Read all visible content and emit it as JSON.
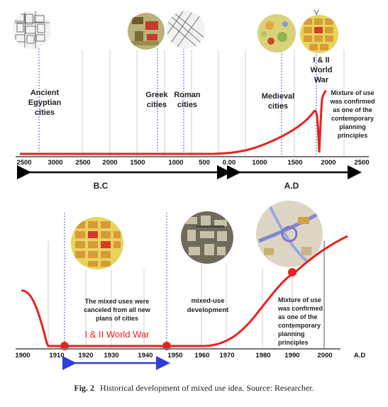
{
  "top_panel": {
    "axis_ticks": [
      "2500",
      "3000",
      "2500",
      "2000",
      "1500",
      "1000",
      "500",
      "0.00",
      "1000",
      "1500",
      "2000",
      "2500"
    ],
    "era_bc": "B.C",
    "era_ad": "A.D",
    "labels": {
      "egyptian": [
        "Ancient",
        "Egyptian",
        "cities"
      ],
      "greek": [
        "Greek",
        "cities"
      ],
      "roman": [
        "Roman",
        "cities"
      ],
      "medieval": [
        "Medieval",
        "cities"
      ],
      "world_war": [
        "I & II",
        "World",
        "War"
      ],
      "mixture": [
        "Mixture of use",
        "was confirmed",
        "as one of the",
        "contemporary",
        "planning",
        "principles"
      ]
    }
  },
  "bottom_panel": {
    "axis_ticks": [
      "1900",
      "1910",
      "1920",
      "1930",
      "1940",
      "1950",
      "1960",
      "1970",
      "1980",
      "1990",
      "2000"
    ],
    "axis_unit": "A.D",
    "world_war_label": "I & II World War",
    "world_war_color": "#e8221f",
    "canceled_text": [
      "The mixed uses were",
      "canceled from all new",
      "plans of cities"
    ],
    "mixed_use_text": [
      "mixed-use",
      "development"
    ],
    "mixture_text": [
      "Mixture of use",
      "was confirmed",
      "as one of the",
      "contemporary",
      "planning",
      "principles"
    ]
  },
  "caption": {
    "label": "Fig. 2",
    "text": "Historical development of mixed use idea. Source: Researcher."
  },
  "colors": {
    "curve": "#e8221f",
    "span_arrow": "#2f3fd6",
    "guide_line": "#3a63c9"
  }
}
